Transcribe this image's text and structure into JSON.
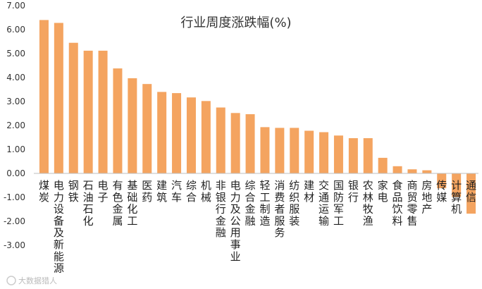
{
  "chart_data": {
    "type": "bar",
    "title": "行业周度涨跌幅(%)",
    "xlabel": "",
    "ylabel": "",
    "ylim": [
      -3.0,
      7.0
    ],
    "yticks": [
      "-3.00",
      "-2.00",
      "-1.00",
      "0.00",
      "1.00",
      "2.00",
      "3.00",
      "4.00",
      "5.00",
      "6.00",
      "7.00"
    ],
    "grid": false,
    "legend": "none",
    "bar_color": "#F4A460",
    "categories": [
      "煤炭",
      "电力设备及新能源",
      "钢铁",
      "石油石化",
      "电子",
      "有色金属",
      "基础化工",
      "医药",
      "建筑",
      "汽车",
      "综合",
      "机械",
      "非银行金融",
      "电力及公用事业",
      "综合金融",
      "轻工制造",
      "消费者服务",
      "纺织服装",
      "建材",
      "交通运输",
      "国防军工",
      "银行",
      "农林牧渔",
      "家电",
      "食品饮料",
      "商贸零售",
      "房地产",
      "传媒",
      "计算机",
      "通信"
    ],
    "values": [
      6.4,
      6.28,
      5.45,
      5.12,
      5.12,
      4.38,
      3.97,
      3.73,
      3.4,
      3.35,
      3.17,
      3.02,
      2.75,
      2.52,
      2.47,
      1.93,
      1.9,
      1.9,
      1.78,
      1.72,
      1.58,
      1.47,
      1.47,
      0.65,
      0.3,
      0.17,
      0.13,
      -0.62,
      -0.98,
      -1.68
    ]
  },
  "watermark": "大数据猎人"
}
